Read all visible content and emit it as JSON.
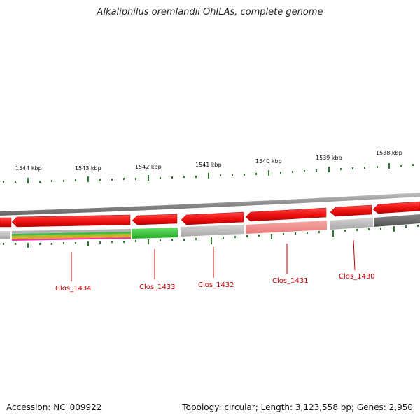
{
  "title": "Alkaliphilus oremlandii OhILAs, complete genome",
  "footer": {
    "accession": "Accession: NC_009922",
    "stats": "Topology: circular; Length: 3,123,558 bp; Genes: 2,950"
  },
  "scale_labels": [
    "1544 kbp",
    "1543 kbp",
    "1542 kbp",
    "1541 kbp",
    "1540 kbp",
    "1539 kbp",
    "1538 kbp"
  ],
  "genes": [
    {
      "label": "Clos_1434",
      "strand": "reverse",
      "color": "#ee1111"
    },
    {
      "label": "Clos_1433",
      "strand": "reverse",
      "color": "#ee1111"
    },
    {
      "label": "Clos_1432",
      "strand": "reverse",
      "color": "#ee1111"
    },
    {
      "label": "Clos_1431",
      "strand": "reverse",
      "color": "#ee1111"
    },
    {
      "label": "Clos_1430",
      "strand": "reverse",
      "color": "#ee1111"
    }
  ],
  "colors": {
    "backbone": "#8a8a8a",
    "cds": "#ee1111",
    "tick": "#2e7d2e",
    "label": "#cc0000",
    "green_feature": "#33cc33",
    "pink_feature": "#f08a8a",
    "light_gray_feature": "#b8b8b8",
    "dark_gray_feature": "#666666"
  }
}
